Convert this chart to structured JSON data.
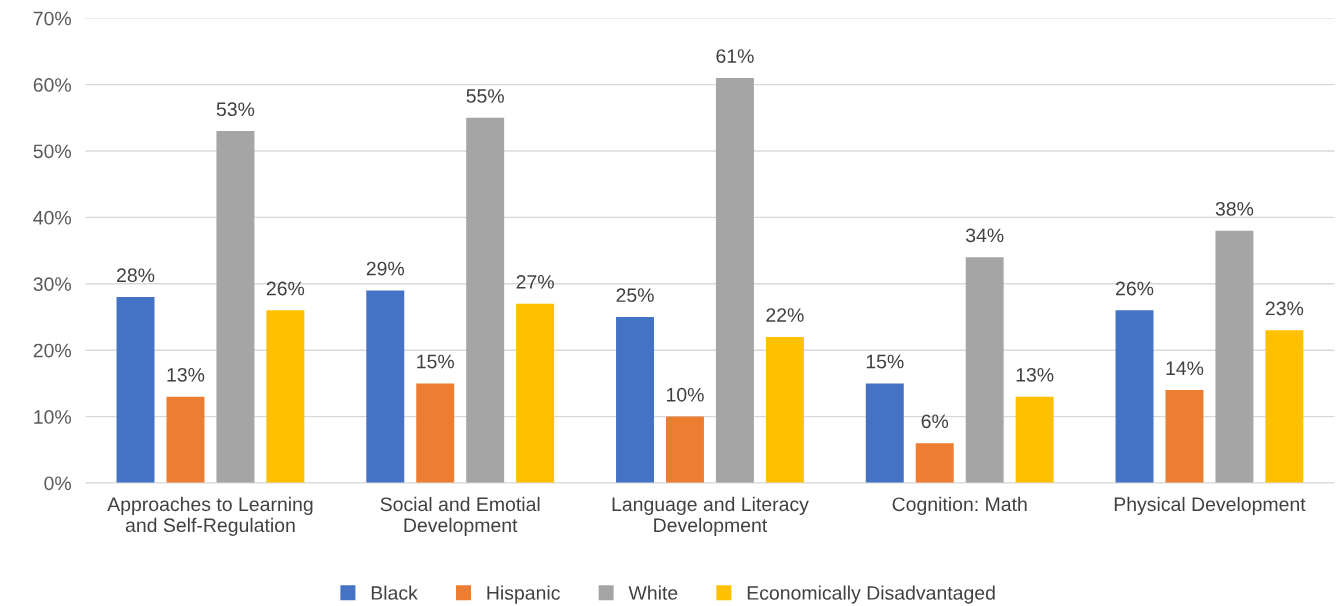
{
  "chart_data": {
    "type": "bar",
    "categories": [
      "Approaches to Learning\nand Self-Regulation",
      "Social and Emotial\nDevelopment",
      "Language and Literacy\nDevelopment",
      "Cognition: Math",
      "Physical Development"
    ],
    "series": [
      {
        "name": "Black",
        "color": "#4472c4",
        "values": [
          28,
          29,
          25,
          15,
          26
        ],
        "value_labels": [
          "28%",
          "29%",
          "25%",
          "15%",
          "26%"
        ]
      },
      {
        "name": "Hispanic",
        "color": "#ed7d31",
        "values": [
          13,
          15,
          10,
          6,
          14
        ],
        "value_labels": [
          "13%",
          "15%",
          "10%",
          "6%",
          "14%"
        ]
      },
      {
        "name": "White",
        "color": "#a5a5a5",
        "values": [
          53,
          55,
          61,
          34,
          38
        ],
        "value_labels": [
          "53%",
          "55%",
          "61%",
          "34%",
          "38%"
        ]
      },
      {
        "name": "Economically Disadvantaged",
        "color": "#ffc000",
        "values": [
          26,
          27,
          22,
          13,
          23
        ],
        "value_labels": [
          "26%",
          "27%",
          "22%",
          "13%",
          "23%"
        ]
      }
    ],
    "ylim": [
      0,
      70
    ],
    "yticks": [
      {
        "value": 0,
        "label": "0%"
      },
      {
        "value": 10,
        "label": "10%"
      },
      {
        "value": 20,
        "label": "20%"
      },
      {
        "value": 30,
        "label": "30%"
      },
      {
        "value": 40,
        "label": "40%"
      },
      {
        "value": 50,
        "label": "50%"
      },
      {
        "value": 60,
        "label": "60%"
      },
      {
        "value": 70,
        "label": "70%"
      }
    ],
    "grid": "y",
    "legend": "bottom"
  }
}
